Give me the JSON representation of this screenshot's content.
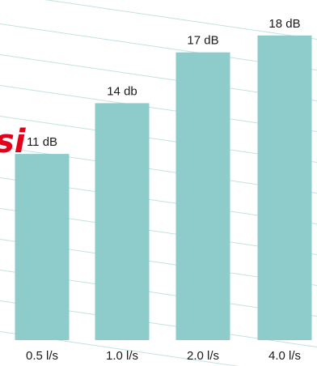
{
  "chart_data": {
    "type": "bar",
    "categories": [
      "0.5 l/s",
      "1.0 l/s",
      "2.0 l/s",
      "4.0 l/s"
    ],
    "values": [
      11,
      14,
      17,
      18
    ],
    "data_labels": [
      "11 dB",
      "14 db",
      "17 dB",
      "18 dB"
    ],
    "title": "",
    "xlabel": "",
    "ylabel": "",
    "grid": false,
    "bar_color": "#8ecbcb",
    "background_line_color": "#8ecbcb",
    "annotation": {
      "text": "si",
      "color": "#e3001b"
    }
  }
}
